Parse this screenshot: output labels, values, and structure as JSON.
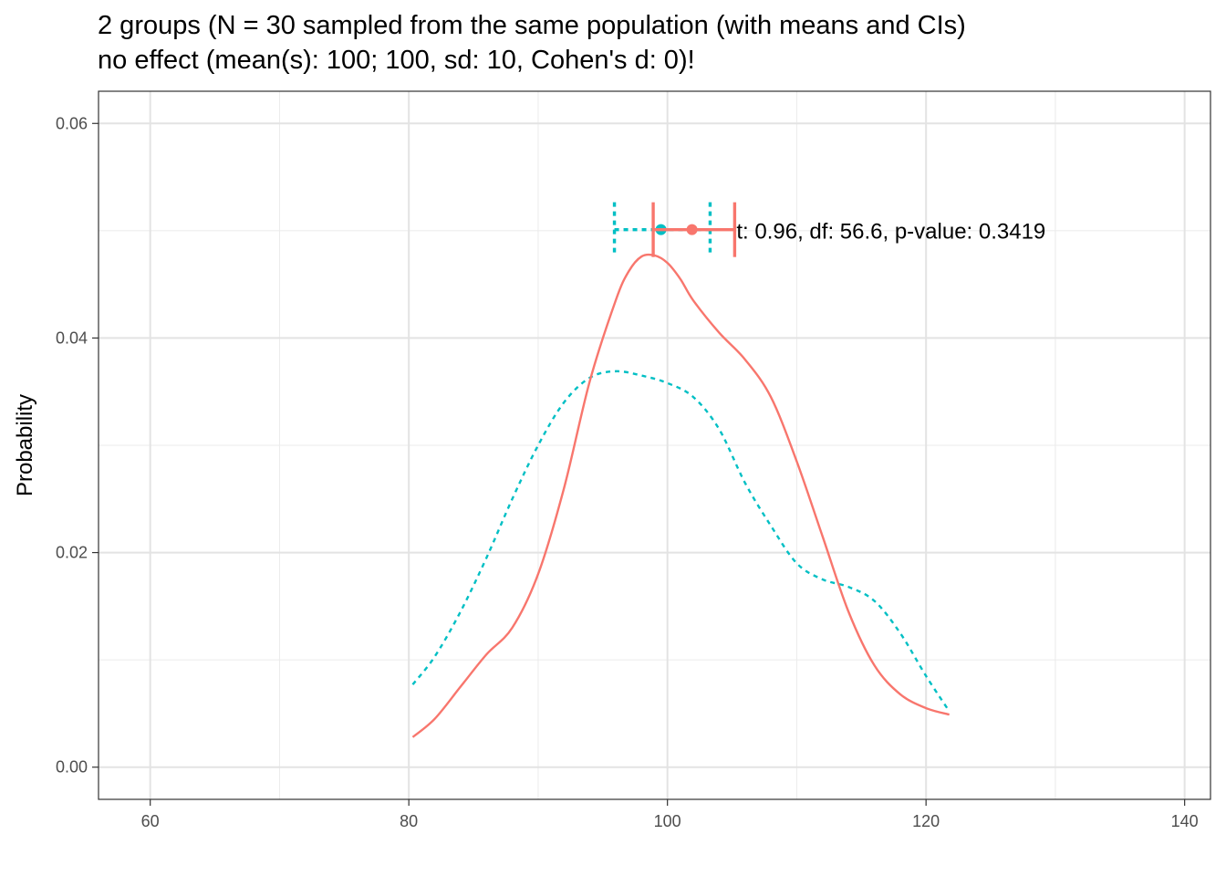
{
  "chart_data": {
    "type": "line",
    "title": "2 groups (N = 30 sampled from the same population (with means and CIs)",
    "subtitle": "no effect (mean(s): 100; 100, sd: 10, Cohen's d: 0)!",
    "xlabel": "",
    "ylabel": "Probability",
    "xlim": [
      56,
      142
    ],
    "ylim": [
      -0.003,
      0.063
    ],
    "x_ticks": [
      60,
      80,
      100,
      120,
      140
    ],
    "x_tick_labels": [
      "60",
      "80",
      "100",
      "120",
      "140"
    ],
    "y_ticks": [
      0,
      0.02,
      0.04,
      0.06
    ],
    "y_tick_labels": [
      "0.00",
      "0.02",
      "0.04",
      "0.06"
    ],
    "grid": true,
    "legend": "none",
    "annotation": {
      "text": "t: 0.96, df: 56.6, p-value: 0.3419",
      "x": 105.2,
      "y": 0.0499
    },
    "series": [
      {
        "color": "#F8766D",
        "line_style": "solid",
        "x": [
          80.3,
          82,
          84,
          86,
          88,
          90,
          92,
          94,
          96,
          97,
          98,
          99,
          100,
          101,
          102,
          104,
          106,
          108,
          110,
          112,
          114,
          116,
          118,
          120,
          121.8
        ],
        "y": [
          0.0028,
          0.0045,
          0.0075,
          0.0105,
          0.013,
          0.018,
          0.026,
          0.036,
          0.0435,
          0.0462,
          0.0476,
          0.0477,
          0.047,
          0.0455,
          0.0435,
          0.0405,
          0.038,
          0.0345,
          0.0285,
          0.0215,
          0.0145,
          0.0095,
          0.0068,
          0.0055,
          0.0049
        ],
        "mean": 101.9,
        "ci": [
          98.9,
          105.2
        ],
        "marker_y": 0.0501
      },
      {
        "color": "#00BFC4",
        "line_style": "dashed",
        "x": [
          80.3,
          82,
          84,
          86,
          88,
          90,
          92,
          94,
          96,
          98,
          100,
          102,
          104,
          106,
          108,
          110,
          112,
          114,
          116,
          118,
          120,
          121.8
        ],
        "y": [
          0.0077,
          0.0103,
          0.0145,
          0.0195,
          0.025,
          0.03,
          0.034,
          0.0363,
          0.0369,
          0.0365,
          0.0358,
          0.0345,
          0.0315,
          0.0265,
          0.0225,
          0.019,
          0.0175,
          0.0168,
          0.0155,
          0.0125,
          0.0085,
          0.0052
        ],
        "mean": 99.5,
        "ci": [
          95.9,
          103.3
        ],
        "marker_y": 0.0501
      }
    ]
  }
}
